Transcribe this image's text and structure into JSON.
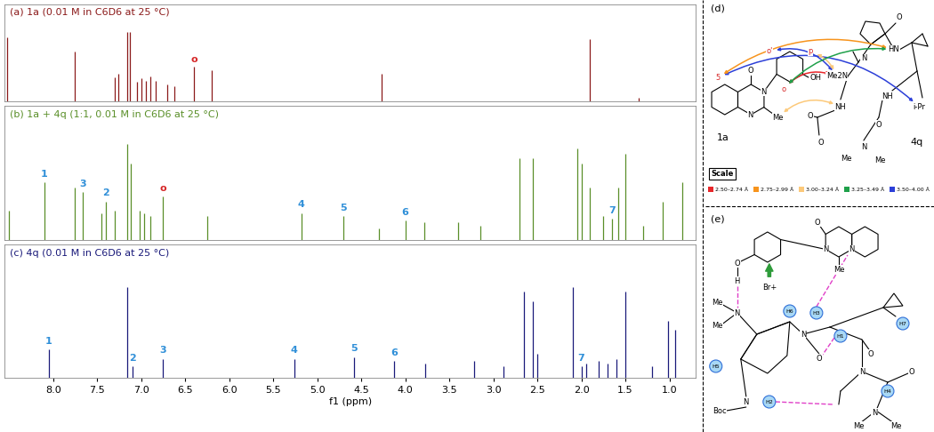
{
  "chart_data": [
    {
      "type": "spectrum",
      "title": "(a) 1a (0.01 M in C6D6 at 25 °C)",
      "color": "#8b1a1a",
      "xlim": [
        8.55,
        0.7
      ],
      "ylim": [
        0,
        140
      ],
      "tick_labels": false,
      "x": [
        8.52,
        7.75,
        7.3,
        7.26,
        7.16,
        7.13,
        7.05,
        7.0,
        6.95,
        6.9,
        6.83,
        6.7,
        6.62,
        6.4,
        6.2,
        4.27,
        1.9,
        1.35
      ],
      "values": [
        92,
        72,
        35,
        40,
        100,
        100,
        28,
        33,
        30,
        36,
        30,
        25,
        22,
        50,
        45,
        40,
        90,
        5
      ],
      "annotations": [
        {
          "text": "o",
          "x": 6.4,
          "color": "#d62728"
        }
      ]
    },
    {
      "type": "spectrum",
      "title": "(b) 1a + 4q (1:1, 0.01 M in C6D6 at 25 °C)",
      "color": "#5a8f29",
      "xlim": [
        8.55,
        0.7
      ],
      "ylim": [
        0,
        140
      ],
      "tick_labels": false,
      "x": [
        8.5,
        8.1,
        7.75,
        7.66,
        7.45,
        7.4,
        7.3,
        7.16,
        7.12,
        7.02,
        6.97,
        6.9,
        6.75,
        6.25,
        5.18,
        4.7,
        4.3,
        4.0,
        3.78,
        3.4,
        3.15,
        2.7,
        2.55,
        2.05,
        2.0,
        1.9,
        1.75,
        1.65,
        1.58,
        1.5,
        1.3,
        1.08,
        0.85
      ],
      "values": [
        30,
        60,
        55,
        50,
        28,
        40,
        30,
        100,
        80,
        30,
        28,
        25,
        45,
        25,
        28,
        25,
        12,
        20,
        18,
        18,
        15,
        85,
        85,
        95,
        80,
        55,
        25,
        22,
        55,
        90,
        15,
        40,
        60
      ],
      "annotations": [
        {
          "text": "1",
          "x": 8.1,
          "color": "#2f8fd8"
        },
        {
          "text": "3",
          "x": 7.66,
          "color": "#2f8fd8"
        },
        {
          "text": "2",
          "x": 7.4,
          "color": "#2f8fd8"
        },
        {
          "text": "o",
          "x": 6.75,
          "color": "#d62728"
        },
        {
          "text": "4",
          "x": 5.18,
          "color": "#2f8fd8"
        },
        {
          "text": "5",
          "x": 4.7,
          "color": "#2f8fd8"
        },
        {
          "text": "6",
          "x": 4.0,
          "color": "#2f8fd8"
        },
        {
          "text": "7",
          "x": 1.65,
          "color": "#2f8fd8"
        }
      ]
    },
    {
      "type": "spectrum",
      "title": "(c) 4q (0.01 M in C6D6 at 25 °C)",
      "color": "#1a1a7a",
      "xlim": [
        8.55,
        0.7
      ],
      "ylim": [
        0,
        140
      ],
      "tick_labels": "x",
      "xlabel": "f1 (ppm)",
      "xticks": [
        8.0,
        7.5,
        7.0,
        6.5,
        6.0,
        5.5,
        5.0,
        4.5,
        4.0,
        3.5,
        3.0,
        2.5,
        2.0,
        1.5,
        1.0
      ],
      "x": [
        8.05,
        7.16,
        7.1,
        6.75,
        5.26,
        4.58,
        4.13,
        3.77,
        3.22,
        2.88,
        2.65,
        2.55,
        2.5,
        2.1,
        2.0,
        1.95,
        1.8,
        1.7,
        1.6,
        1.5,
        1.2,
        1.02,
        0.93
      ],
      "values": [
        30,
        95,
        12,
        20,
        20,
        22,
        18,
        15,
        18,
        12,
        90,
        80,
        25,
        95,
        12,
        15,
        18,
        15,
        20,
        90,
        12,
        60,
        50
      ],
      "annotations": [
        {
          "text": "1",
          "x": 8.05,
          "color": "#2f8fd8"
        },
        {
          "text": "2",
          "x": 7.1,
          "color": "#2f8fd8"
        },
        {
          "text": "3",
          "x": 6.75,
          "color": "#2f8fd8"
        },
        {
          "text": "4",
          "x": 5.26,
          "color": "#2f8fd8"
        },
        {
          "text": "5",
          "x": 4.58,
          "color": "#2f8fd8"
        },
        {
          "text": "6",
          "x": 4.13,
          "color": "#2f8fd8"
        },
        {
          "text": "7",
          "x": 2.0,
          "color": "#2f8fd8"
        }
      ]
    }
  ],
  "panel_d": {
    "label": "(d)",
    "atoms": [
      {
        "text": "5",
        "color": "#d62728"
      },
      {
        "text": "O"
      },
      {
        "text": "N"
      },
      {
        "text": "N"
      },
      {
        "text": "Me"
      },
      {
        "text": "o'",
        "color": "#d62728"
      },
      {
        "text": "o",
        "color": "#d62728"
      },
      {
        "text": "p",
        "color": "#d62728"
      },
      {
        "text": "OH"
      },
      {
        "text": "Me2N"
      },
      {
        "text": "N"
      },
      {
        "text": "O"
      },
      {
        "text": "HN"
      },
      {
        "text": "NH"
      },
      {
        "text": "O"
      },
      {
        "text": "O"
      },
      {
        "text": "NH"
      },
      {
        "text": "O"
      },
      {
        "text": "N"
      },
      {
        "text": "Me"
      },
      {
        "text": "Me"
      },
      {
        "text": "i-Pr"
      },
      {
        "text": "1a"
      },
      {
        "text": "4q"
      }
    ],
    "contacts": [
      {
        "from": "5",
        "to": "i-Pr",
        "range": "3.50–4.00 Å"
      },
      {
        "from": "5",
        "to": "HN",
        "range": "2.75–2.99 Å"
      },
      {
        "from": "o'",
        "to": "Me2N",
        "range": "3.50–4.00 Å"
      },
      {
        "from": "p",
        "to": "Me2N",
        "range": "3.00–3.24 Å"
      },
      {
        "from": "o",
        "to": "Me2N",
        "range": "2.50–2.74 Å"
      },
      {
        "from": "o",
        "to": "HN",
        "range": "3.25–3.49 Å"
      },
      {
        "from": "Me",
        "to": "NH",
        "range": "3.00–3.24 Å"
      }
    ],
    "scale": {
      "title": "Scale",
      "ranges": [
        {
          "label": "2.50–2.74 Å",
          "color": "#e8262a"
        },
        {
          "label": "2.75–2.99 Å",
          "color": "#f7941d"
        },
        {
          "label": "3.00–3.24 Å",
          "color": "#fcc97a"
        },
        {
          "label": "3.25–3.49 Å",
          "color": "#1fa04a"
        },
        {
          "label": "3.50–4.00 Å",
          "color": "#2c3fd8"
        }
      ]
    }
  },
  "panel_e": {
    "label": "(e)",
    "atoms": [
      {
        "text": "O"
      },
      {
        "text": "H"
      },
      {
        "text": "N"
      },
      {
        "text": "Me"
      },
      {
        "text": "Me"
      },
      {
        "text": "Br+"
      },
      {
        "text": "O"
      },
      {
        "text": "N"
      },
      {
        "text": "Me"
      },
      {
        "text": "N"
      },
      {
        "text": "N"
      },
      {
        "text": "O"
      },
      {
        "text": "O"
      },
      {
        "text": "N"
      },
      {
        "text": "O"
      },
      {
        "text": "N"
      },
      {
        "text": "Me"
      },
      {
        "text": "Me"
      },
      {
        "text": "Boc"
      },
      {
        "text": "N"
      }
    ],
    "h_labels": [
      "H1",
      "H2",
      "H3",
      "H4",
      "H5",
      "H6",
      "H7"
    ]
  }
}
